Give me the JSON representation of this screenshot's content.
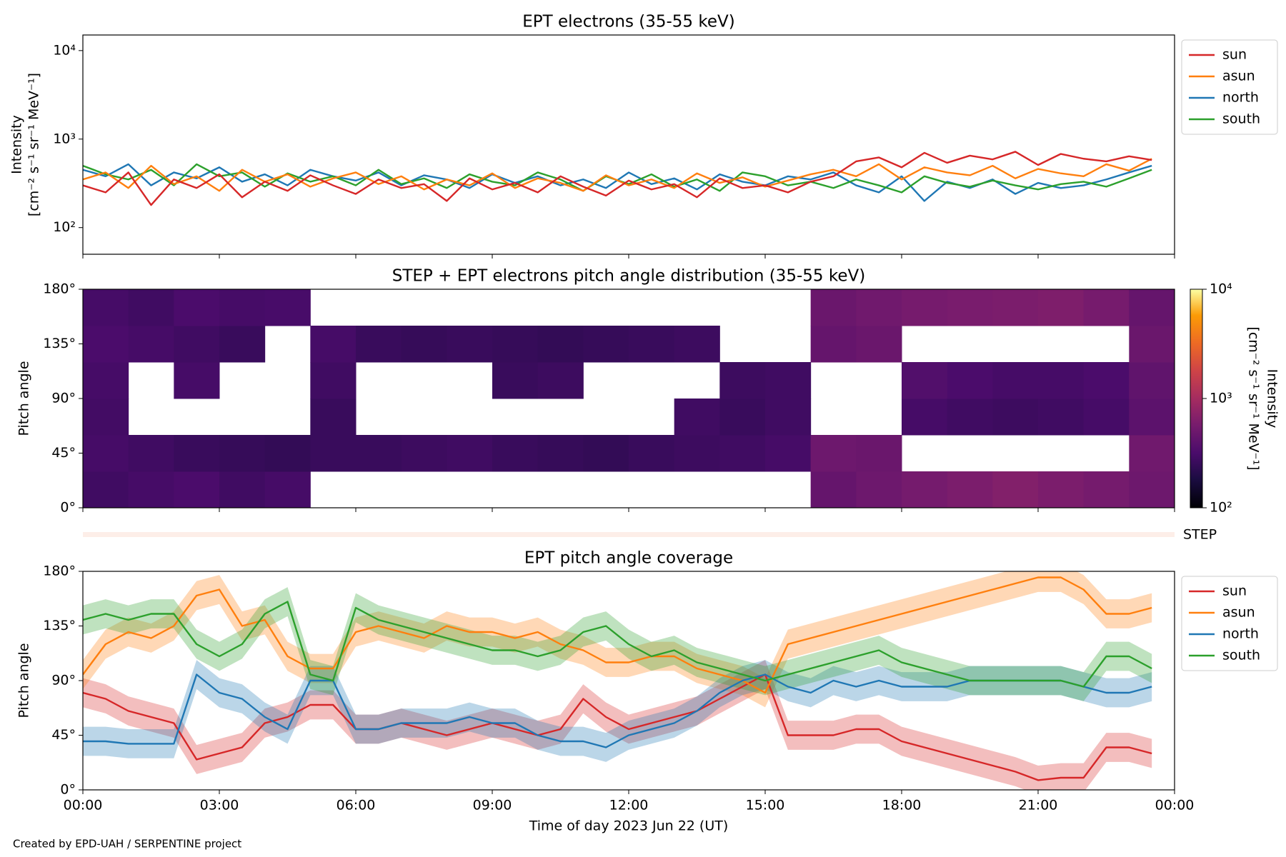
{
  "chart_data": [
    {
      "type": "line",
      "title": "EPT electrons (35-55 keV)",
      "ylabel": [
        "Intensity",
        "[cm⁻² s⁻¹ sr⁻¹ MeV⁻¹]"
      ],
      "log": true,
      "legend": "outside upper right",
      "xlim": [
        0,
        24
      ],
      "xticks": [
        0,
        3,
        6,
        9,
        12,
        15,
        18,
        21,
        24
      ],
      "ylim": [
        50,
        15000
      ],
      "yticks": [
        {
          "value": 100,
          "label": "10²"
        },
        {
          "value": 1000,
          "label": "10³"
        },
        {
          "value": 10000,
          "label": "10⁴"
        }
      ],
      "x": [
        0,
        0.5,
        1,
        1.5,
        2,
        2.5,
        3,
        3.5,
        4,
        4.5,
        5,
        5.5,
        6,
        6.5,
        7,
        7.5,
        8,
        8.5,
        9,
        9.5,
        10,
        10.5,
        11,
        11.5,
        12,
        12.5,
        13,
        13.5,
        14,
        14.5,
        15,
        15.5,
        16,
        16.5,
        17,
        17.5,
        18,
        18.5,
        19,
        19.5,
        20,
        20.5,
        21,
        21.5,
        22,
        22.5,
        23,
        23.5
      ],
      "series": [
        {
          "name": "north",
          "color": "#1f77b4",
          "values": [
            450,
            380,
            520,
            300,
            420,
            360,
            480,
            330,
            400,
            300,
            450,
            380,
            340,
            420,
            300,
            390,
            350,
            280,
            400,
            320,
            380,
            300,
            350,
            280,
            420,
            310,
            360,
            270,
            400,
            330,
            300,
            380,
            350,
            420,
            300,
            250,
            380,
            200,
            330,
            280,
            350,
            240,
            320,
            280,
            300,
            350,
            420,
            500
          ]
        },
        {
          "name": "south",
          "color": "#2ca02c",
          "values": [
            500,
            400,
            350,
            450,
            300,
            520,
            380,
            420,
            290,
            410,
            330,
            380,
            300,
            450,
            310,
            360,
            280,
            400,
            330,
            300,
            420,
            350,
            260,
            380,
            310,
            400,
            290,
            350,
            260,
            420,
            380,
            300,
            330,
            280,
            350,
            300,
            250,
            380,
            320,
            290,
            340,
            300,
            270,
            310,
            330,
            290,
            360,
            450
          ]
        },
        {
          "name": "asun",
          "color": "#ff7f0e",
          "values": [
            350,
            420,
            280,
            500,
            310,
            380,
            260,
            450,
            330,
            400,
            290,
            360,
            420,
            310,
            380,
            270,
            350,
            300,
            410,
            280,
            360,
            320,
            260,
            390,
            300,
            350,
            280,
            410,
            320,
            370,
            290,
            340,
            400,
            450,
            380,
            520,
            350,
            480,
            420,
            390,
            500,
            360,
            460,
            410,
            380,
            520,
            440,
            600
          ]
        },
        {
          "name": "sun",
          "color": "#d62728",
          "values": [
            300,
            250,
            420,
            180,
            350,
            280,
            400,
            220,
            330,
            260,
            390,
            300,
            240,
            350,
            280,
            310,
            200,
            360,
            270,
            320,
            250,
            380,
            290,
            230,
            340,
            270,
            310,
            220,
            360,
            280,
            300,
            250,
            330,
            380,
            560,
            620,
            480,
            700,
            540,
            650,
            590,
            720,
            510,
            680,
            600,
            560,
            640,
            580
          ]
        }
      ],
      "legend_order": [
        "sun",
        "asun",
        "north",
        "south"
      ]
    },
    {
      "type": "heatmap",
      "title": "STEP + EPT electrons pitch angle distribution (35-55 keV)",
      "ylabel": "Pitch angle",
      "xlim": [
        0,
        24
      ],
      "xticks": [
        0,
        3,
        6,
        9,
        12,
        15,
        18,
        21,
        24
      ],
      "ylim": [
        0,
        180
      ],
      "yticks": [
        {
          "value": 0,
          "label": "0°"
        },
        {
          "value": 45,
          "label": "45°"
        },
        {
          "value": 90,
          "label": "90°"
        },
        {
          "value": 135,
          "label": "135°"
        },
        {
          "value": 180,
          "label": "180°"
        }
      ],
      "x_edges": [
        0,
        1,
        2,
        3,
        4,
        5,
        6,
        7,
        8,
        9,
        10,
        11,
        12,
        13,
        14,
        15,
        16,
        17,
        18,
        19,
        20,
        21,
        22,
        23,
        24
      ],
      "y_edges": [
        0,
        30,
        60,
        90,
        120,
        150,
        180
      ],
      "z": [
        [
          280,
          300,
          320,
          280,
          300,
          null,
          null,
          null,
          null,
          null,
          null,
          null,
          null,
          null,
          null,
          null,
          450,
          500,
          550,
          600,
          650,
          600,
          550,
          500
        ],
        [
          300,
          280,
          260,
          250,
          240,
          260,
          260,
          270,
          280,
          260,
          250,
          240,
          260,
          270,
          280,
          300,
          500,
          480,
          null,
          null,
          null,
          null,
          null,
          520
        ],
        [
          290,
          null,
          null,
          null,
          null,
          260,
          null,
          null,
          null,
          null,
          null,
          null,
          null,
          280,
          260,
          280,
          null,
          null,
          300,
          280,
          270,
          280,
          300,
          400
        ],
        [
          300,
          null,
          300,
          null,
          null,
          280,
          null,
          null,
          null,
          260,
          270,
          null,
          null,
          null,
          270,
          280,
          null,
          null,
          350,
          320,
          300,
          300,
          320,
          420
        ],
        [
          320,
          300,
          280,
          260,
          null,
          300,
          260,
          250,
          260,
          250,
          240,
          250,
          260,
          270,
          null,
          null,
          450,
          480,
          null,
          null,
          null,
          null,
          null,
          480
        ],
        [
          300,
          280,
          320,
          300,
          310,
          null,
          null,
          null,
          null,
          null,
          null,
          null,
          null,
          null,
          null,
          null,
          480,
          520,
          560,
          580,
          600,
          620,
          560,
          450
        ]
      ],
      "colormap": "inferno",
      "colorbar": {
        "label": [
          "Intensity",
          "[cm⁻² s⁻¹ sr⁻¹ MeV⁻¹]"
        ],
        "log": true,
        "clim": [
          100,
          10000
        ],
        "ticks": [
          {
            "value": 100,
            "label": "10²"
          },
          {
            "value": 1000,
            "label": "10³"
          },
          {
            "value": 10000,
            "label": "10⁴"
          }
        ]
      },
      "step_label": "STEP"
    },
    {
      "type": "band",
      "title": "EPT pitch angle coverage",
      "ylabel": "Pitch angle",
      "xlabel": "Time of day 2023 Jun 22 (UT)",
      "legend": "outside upper right",
      "xlim": [
        0,
        24
      ],
      "xticks": [
        {
          "value": 0,
          "label": "00:00"
        },
        {
          "value": 3,
          "label": "03:00"
        },
        {
          "value": 6,
          "label": "06:00"
        },
        {
          "value": 9,
          "label": "09:00"
        },
        {
          "value": 12,
          "label": "12:00"
        },
        {
          "value": 15,
          "label": "15:00"
        },
        {
          "value": 18,
          "label": "18:00"
        },
        {
          "value": 21,
          "label": "21:00"
        },
        {
          "value": 24,
          "label": "00:00"
        }
      ],
      "ylim": [
        0,
        180
      ],
      "yticks": [
        {
          "value": 0,
          "label": "0°"
        },
        {
          "value": 45,
          "label": "45°"
        },
        {
          "value": 90,
          "label": "90°"
        },
        {
          "value": 135,
          "label": "135°"
        },
        {
          "value": 180,
          "label": "180°"
        }
      ],
      "x": [
        0,
        0.5,
        1,
        1.5,
        2,
        2.5,
        3,
        3.5,
        4,
        4.5,
        5,
        5.5,
        6,
        6.5,
        7,
        7.5,
        8,
        8.5,
        9,
        9.5,
        10,
        10.5,
        11,
        11.5,
        12,
        12.5,
        13,
        13.5,
        14,
        14.5,
        15,
        15.5,
        16,
        16.5,
        17,
        17.5,
        18,
        18.5,
        19,
        19.5,
        20,
        20.5,
        21,
        21.5,
        22,
        22.5,
        23,
        23.5
      ],
      "series": [
        {
          "name": "sun",
          "color": "#d62728",
          "spread": 12,
          "values": [
            80,
            75,
            65,
            60,
            55,
            25,
            30,
            35,
            55,
            60,
            70,
            70,
            50,
            50,
            55,
            50,
            45,
            50,
            55,
            50,
            45,
            50,
            75,
            60,
            50,
            55,
            60,
            65,
            75,
            85,
            95,
            45,
            45,
            45,
            50,
            50,
            40,
            35,
            30,
            25,
            20,
            15,
            8,
            10,
            10,
            35,
            35,
            30
          ]
        },
        {
          "name": "asun",
          "color": "#ff7f0e",
          "spread": 12,
          "values": [
            95,
            120,
            130,
            125,
            135,
            160,
            165,
            135,
            140,
            110,
            100,
            100,
            130,
            135,
            130,
            125,
            135,
            130,
            130,
            125,
            130,
            120,
            115,
            105,
            105,
            110,
            110,
            100,
            95,
            90,
            80,
            120,
            125,
            130,
            135,
            140,
            145,
            150,
            155,
            160,
            165,
            170,
            175,
            175,
            165,
            145,
            145,
            150
          ]
        },
        {
          "name": "north",
          "color": "#1f77b4",
          "spread": 12,
          "values": [
            40,
            40,
            38,
            38,
            38,
            95,
            80,
            75,
            60,
            50,
            90,
            90,
            50,
            50,
            55,
            55,
            55,
            60,
            55,
            55,
            45,
            40,
            40,
            35,
            45,
            50,
            55,
            65,
            80,
            90,
            95,
            85,
            80,
            90,
            85,
            90,
            85,
            85,
            85,
            90,
            90,
            90,
            90,
            90,
            85,
            80,
            80,
            85
          ]
        },
        {
          "name": "south",
          "color": "#2ca02c",
          "spread": 12,
          "values": [
            140,
            145,
            140,
            145,
            145,
            120,
            110,
            120,
            145,
            155,
            95,
            90,
            150,
            140,
            135,
            130,
            125,
            120,
            115,
            115,
            110,
            115,
            130,
            135,
            120,
            110,
            115,
            105,
            100,
            95,
            90,
            95,
            100,
            105,
            110,
            115,
            105,
            100,
            95,
            90,
            90,
            90,
            90,
            90,
            85,
            110,
            110,
            100
          ]
        }
      ]
    }
  ],
  "footer": "Created by EPD-UAH / SERPENTINE project"
}
